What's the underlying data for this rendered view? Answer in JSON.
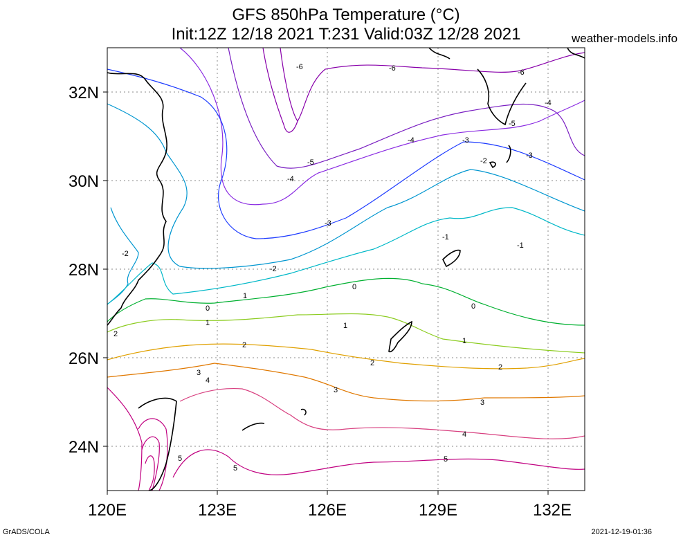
{
  "title": {
    "line1": "GFS 850hPa Temperature (°C)",
    "line2": "Init:12Z 12/18 2021 T:231 Valid:03Z 12/28 2021"
  },
  "website": "weather-models.info",
  "footer": {
    "left": "GrADS/COLA",
    "right": "2021-12-19-01:36"
  },
  "map": {
    "lon_range": [
      120,
      133
    ],
    "lat_range": [
      23,
      33
    ],
    "x_ticks": [
      "120E",
      "123E",
      "126E",
      "129E",
      "132E"
    ],
    "y_ticks": [
      "32N",
      "30N",
      "28N",
      "26N",
      "24N"
    ],
    "gridlines": "dotted"
  },
  "contours": {
    "colors": {
      "-6": "#8800aa",
      "-5": "#7a1fc2",
      "-4": "#8a2be2",
      "-3": "#1e3cff",
      "-2": "#0096d0",
      "-1": "#00b8c8",
      "0": "#00b030",
      "1": "#8ccc20",
      "2": "#e0a000",
      "3": "#e07800",
      "4": "#d84080",
      "5": "#c00080"
    },
    "labels": [
      "-6",
      "-6",
      "-6",
      "-5",
      "-5",
      "-4",
      "-4",
      "-4",
      "-3",
      "-3",
      "-3",
      "-2",
      "-2",
      "-2",
      "-1",
      "-1",
      "0",
      "0",
      "0",
      "1",
      "1",
      "1",
      "1",
      "2",
      "2",
      "2",
      "2",
      "3",
      "3",
      "3",
      "4",
      "4",
      "5",
      "5",
      "5"
    ]
  }
}
